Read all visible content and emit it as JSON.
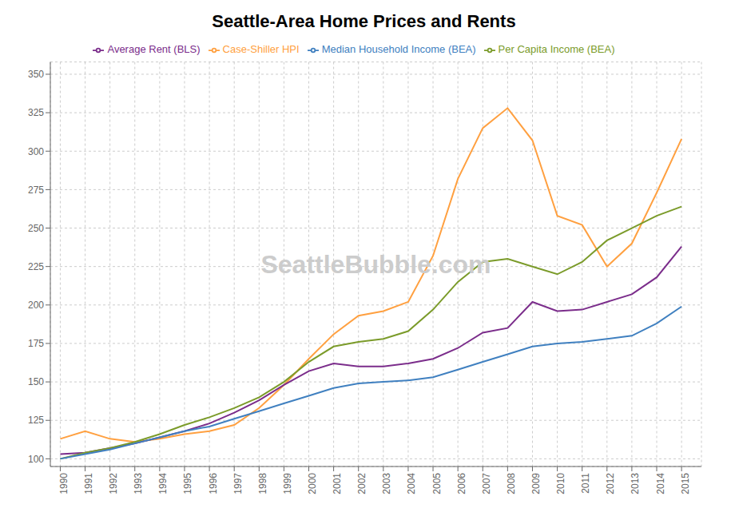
{
  "chart_data": {
    "type": "line",
    "title": "Seattle-Area Home Prices and Rents",
    "x": [
      1990,
      1991,
      1992,
      1993,
      1994,
      1995,
      1996,
      1997,
      1998,
      1999,
      2000,
      2001,
      2002,
      2003,
      2004,
      2005,
      2006,
      2007,
      2008,
      2009,
      2010,
      2011,
      2012,
      2013,
      2014,
      2015
    ],
    "series": [
      {
        "name": "Case-Shiller HPI",
        "color": "#FFA040",
        "values": [
          113,
          118,
          113,
          111,
          113,
          116,
          118,
          122,
          133,
          148,
          165,
          181,
          193,
          196,
          202,
          232,
          282,
          315,
          328,
          307,
          258,
          252,
          225,
          240,
          273,
          308
        ]
      },
      {
        "name": "Average Rent (BLS)",
        "color": "#7B2D8B",
        "values": [
          103,
          104,
          107,
          110,
          114,
          118,
          123,
          130,
          138,
          148,
          157,
          162,
          160,
          160,
          162,
          165,
          172,
          182,
          185,
          202,
          196,
          197,
          202,
          207,
          218,
          238
        ]
      },
      {
        "name": "Per Capita Income (BEA)",
        "color": "#7B9B2A",
        "values": [
          100,
          104,
          107,
          111,
          116,
          122,
          127,
          133,
          140,
          150,
          163,
          173,
          176,
          178,
          183,
          197,
          215,
          228,
          230,
          225,
          220,
          228,
          242,
          250,
          258,
          264
        ]
      },
      {
        "name": "Median Household Income (BEA)",
        "color": "#4080C0",
        "values": [
          100,
          103,
          106,
          110,
          114,
          118,
          121,
          126,
          131,
          136,
          141,
          146,
          149,
          150,
          151,
          153,
          158,
          163,
          168,
          173,
          175,
          176,
          178,
          180,
          188,
          199
        ]
      }
    ],
    "xlim": [
      1989.6,
      2015.8
    ],
    "xticks": [
      1990,
      1991,
      1992,
      1993,
      1994,
      1995,
      1996,
      1997,
      1998,
      1999,
      2000,
      2001,
      2002,
      2003,
      2004,
      2005,
      2006,
      2007,
      2008,
      2009,
      2010,
      2011,
      2012,
      2013,
      2014,
      2015
    ],
    "ylim": [
      95,
      358
    ],
    "yticks": [
      100,
      125,
      150,
      175,
      200,
      225,
      250,
      275,
      300,
      325,
      350
    ],
    "grid": true,
    "legend": "top",
    "annotations": [
      "SeattleBubble.com"
    ]
  }
}
